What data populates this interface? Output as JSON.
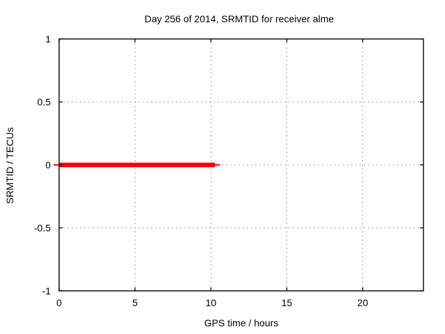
{
  "chart_data": {
    "type": "line",
    "title": "Day 256 of 2014, SRMTID for receiver alme",
    "xlabel": "GPS time / hours",
    "ylabel": "SRMTID / TECUs",
    "xlim": [
      0,
      24
    ],
    "ylim": [
      -1,
      1
    ],
    "xticks": [
      0,
      5,
      10,
      15,
      20
    ],
    "yticks": [
      -1,
      -0.5,
      0,
      0.5,
      1
    ],
    "grid": true,
    "legend": "none",
    "background_color": "#ffffff",
    "grid_color": "#a0a0a0",
    "axis_color": "#000000",
    "series": [
      {
        "name": "SRMTID",
        "color": "#ff0000",
        "style": "thick horizontal line",
        "y": 0.0,
        "x_start": 0.0,
        "x_end": 10.5
      }
    ]
  }
}
